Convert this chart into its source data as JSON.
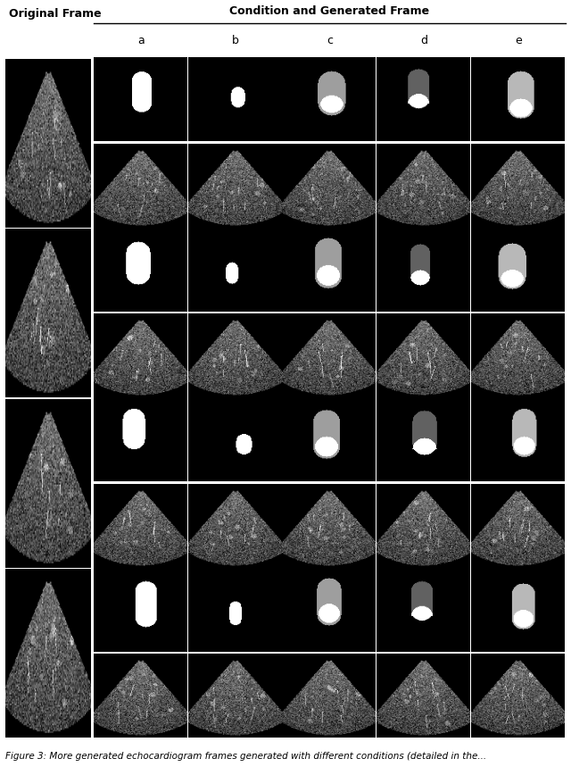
{
  "title_left": "Original Frame",
  "title_right": "Condition and Generated Frame",
  "col_labels": [
    "a",
    "b",
    "c",
    "d",
    "e"
  ],
  "n_rows": 4,
  "background": "white",
  "fig_width": 6.4,
  "fig_height": 8.59,
  "caption": "Figure 3: More generated echocardiogram frames generated with different conditions (detailed in the...",
  "mask_gray_outer": 0.62,
  "mask_gray_dark": 0.38,
  "mask_gray_light": 0.72,
  "mask_white": 1.0
}
